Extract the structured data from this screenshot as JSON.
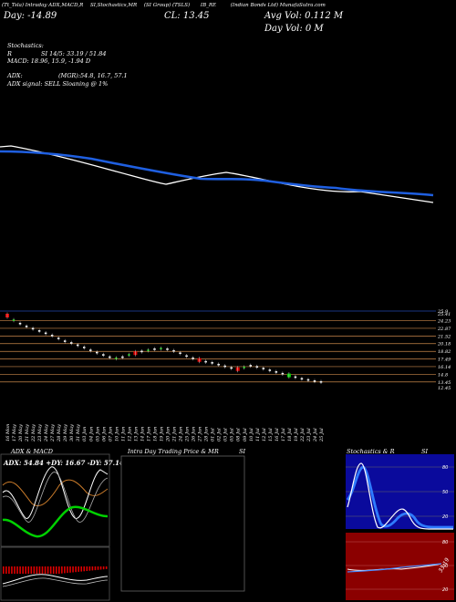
{
  "header": {
    "line1": [
      "(Tt_Tsla) Intraday ADX,MACD,R",
      "SI,Stochastics,MR",
      "(SI Group) (TSLS)",
      "IB_RE",
      "(Indian Bonds Ltd) MunafaSutra.com"
    ],
    "ticker": "Tt_Tsla",
    "day": "Day: -14.89",
    "close": "CL: 13.45",
    "avg_vol": "Avg Vol: 0.112  M",
    "day_vol": "Day Vol: 0   M",
    "stoch_title": "Stochastics:",
    "stoch_line": "R",
    "si_line": "SI 14/5: 33.19 / 51.84",
    "macd_line": "MACD: 18.96,  15.9,  -1.94  D",
    "adx_title": "ADX:",
    "mgr_line": "(MGR):54.8,  16.7,  57.1",
    "adx_signal": "ADX  signal: SELL  Sloaning @ 1%"
  },
  "price_axis": [
    "25.9",
    "25.41",
    "24.23",
    "22.87",
    "21.52",
    "20.18",
    "18.82",
    "17.49",
    "16.14",
    "14.8",
    "13.45",
    "12.45"
  ],
  "date_labels": [
    "16 Mon",
    "17 May",
    "20 May",
    "21 May",
    "22 May",
    "23 May",
    "24 May",
    "27 May",
    "28 May",
    "29 May",
    "30 May",
    "31 May",
    "03 Jun",
    "04 Jun",
    "05 Jun",
    "06 Jun",
    "07 Jun",
    "10 Jun",
    "11 Jun",
    "12 Jun",
    "13 Jun",
    "14 Jun",
    "17 Jun",
    "18 Jun",
    "19 Jun",
    "20 Jun",
    "21 Jun",
    "24 Jun",
    "25 Jun",
    "26 Jun",
    "27 Jun",
    "28 Jun",
    "01 Jul",
    "02 Jul",
    "03 Jul",
    "05 Jul",
    "08 Jul",
    "09 Jul",
    "10 Jul",
    "11 Jul",
    "12 Jul",
    "15 Jul",
    "16 Jul",
    "17 Jul",
    "18 Jul",
    "19 Jul",
    "22 Jul",
    "23 Jul",
    "24 Jul",
    "25 Jul"
  ],
  "panels": {
    "adx_macd": "ADX  & MACD",
    "adx_values": "ADX: 54.84  +DY: 16.67 -DY: 57.14",
    "intraday": "Intra  Day Trading Price  & MR",
    "intraday_si": "SI",
    "stoch": "Stochastics & R",
    "stoch_si": "SI",
    "stoch_ticks": [
      "80",
      "50",
      "20"
    ],
    "rsi_ticks": [
      "80",
      "50",
      "20"
    ],
    "rsi_value": "33.19"
  },
  "colors": {
    "blue_ma": "#1f5fe0",
    "white_ma": "#ffffff",
    "band_line": "#c8864a",
    "green": "#00d100",
    "red": "#e00000",
    "panel_red": "#8b0000",
    "stoch_blue": "#0a0a9c"
  },
  "chart_data": {
    "type": "candlestick",
    "ylim": [
      12.45,
      25.9
    ],
    "closes": [
      25.1,
      24.3,
      23.7,
      23.2,
      22.8,
      22.4,
      22.0,
      21.6,
      21.1,
      20.6,
      20.3,
      19.9,
      19.5,
      19.0,
      18.6,
      18.2,
      17.8,
      17.6,
      17.8,
      18.2,
      18.5,
      18.8,
      19.0,
      19.2,
      19.3,
      19.2,
      18.9,
      18.5,
      18.0,
      17.6,
      17.3,
      17.0,
      16.8,
      16.5,
      16.2,
      15.9,
      15.7,
      16.0,
      16.3,
      16.1,
      15.8,
      15.5,
      15.2,
      14.9,
      14.6,
      14.3,
      14.0,
      13.8,
      13.6,
      13.45
    ],
    "rising": [
      false,
      true,
      false,
      false,
      false,
      false,
      false,
      false,
      false,
      false,
      false,
      false,
      false,
      false,
      false,
      false,
      false,
      true,
      false,
      true,
      false,
      false,
      true,
      false,
      true,
      false,
      false,
      false,
      false,
      false,
      false,
      false,
      false,
      false,
      false,
      false,
      false,
      true,
      false,
      false,
      false,
      false,
      false,
      false,
      true,
      false,
      false,
      false,
      false,
      false
    ]
  }
}
